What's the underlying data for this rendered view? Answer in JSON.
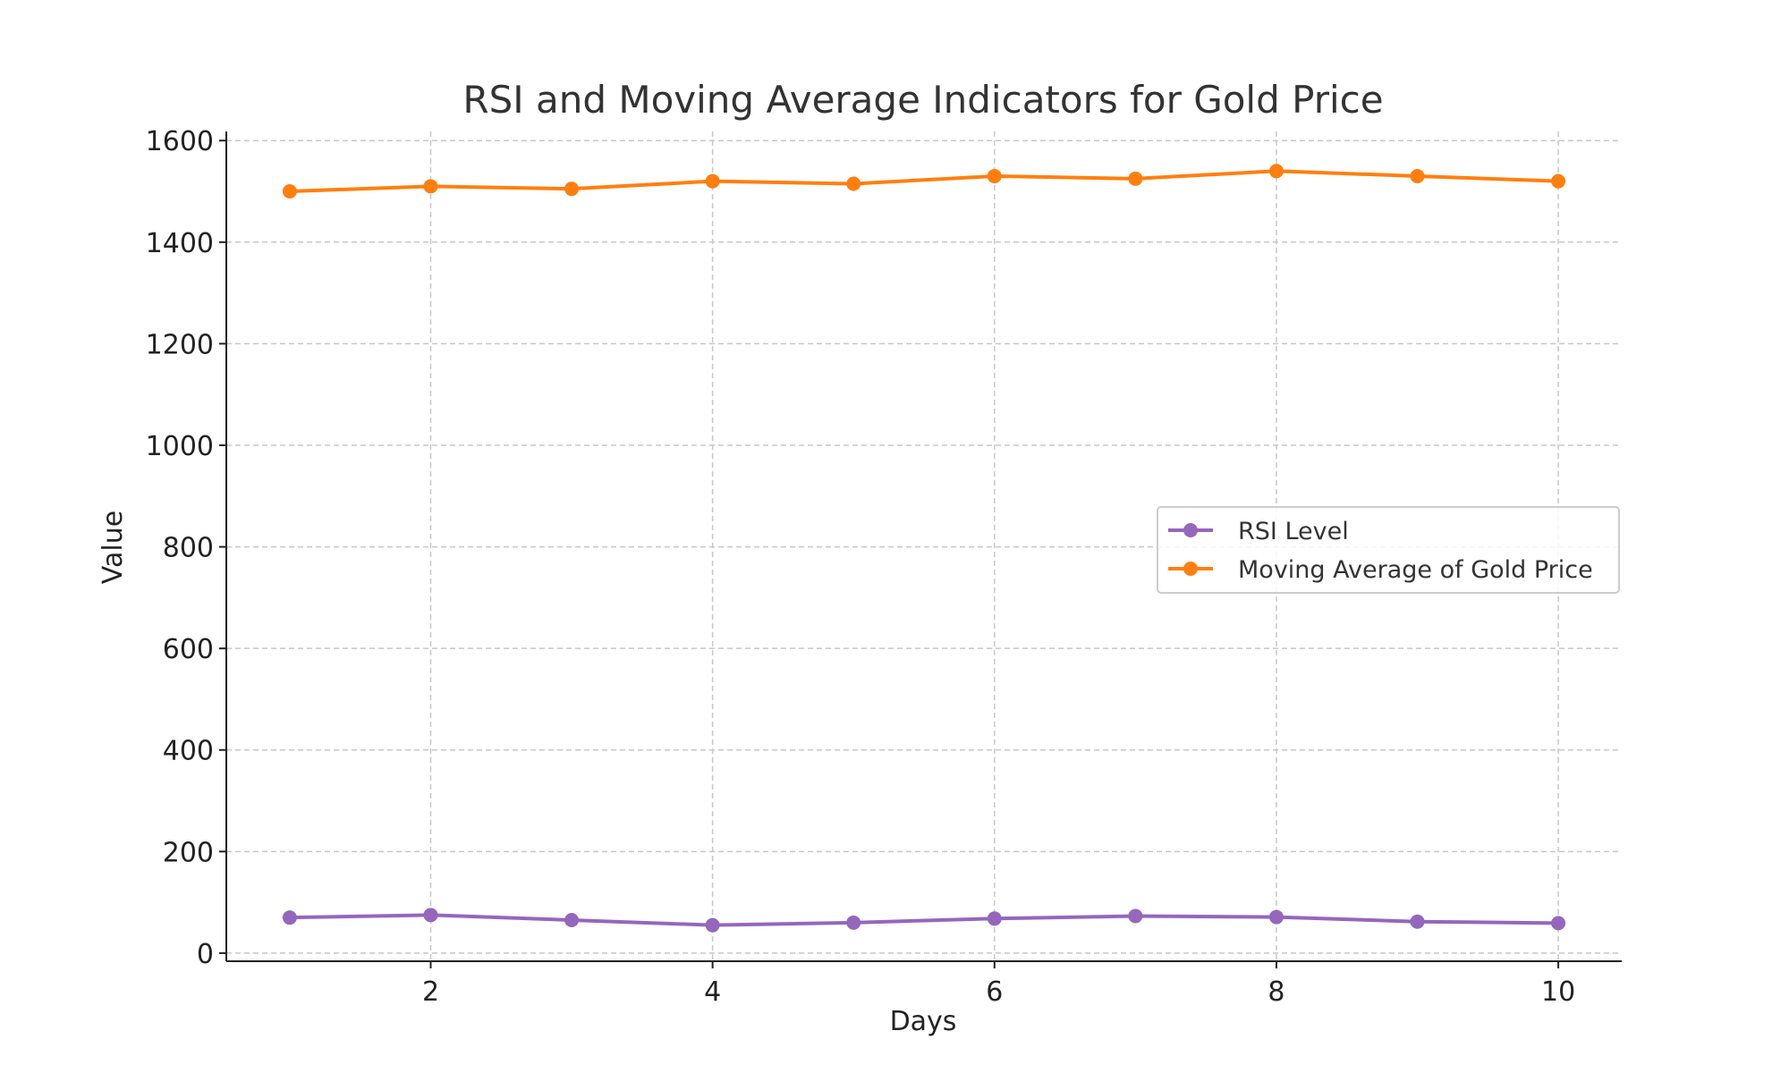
{
  "chart_data": {
    "type": "line",
    "title": "RSI and Moving Average Indicators for Gold Price",
    "xlabel": "Days",
    "ylabel": "Value",
    "x": [
      1,
      2,
      3,
      4,
      5,
      6,
      7,
      8,
      9,
      10
    ],
    "xticks": [
      2,
      4,
      6,
      8,
      10
    ],
    "yticks": [
      0,
      200,
      400,
      600,
      800,
      1000,
      1200,
      1400,
      1600
    ],
    "xlim": [
      0.55,
      10.45
    ],
    "ylim": [
      -16,
      1618
    ],
    "grid": true,
    "legend_position": "center-right",
    "series": [
      {
        "name": "RSI Level",
        "color": "#9467bd",
        "values": [
          70,
          75,
          65,
          55,
          60,
          68,
          73,
          71,
          62,
          59
        ]
      },
      {
        "name": "Moving Average of Gold Price",
        "color": "#ff7f0e",
        "values": [
          1500,
          1510,
          1505,
          1520,
          1515,
          1530,
          1525,
          1540,
          1530,
          1520
        ]
      }
    ]
  }
}
